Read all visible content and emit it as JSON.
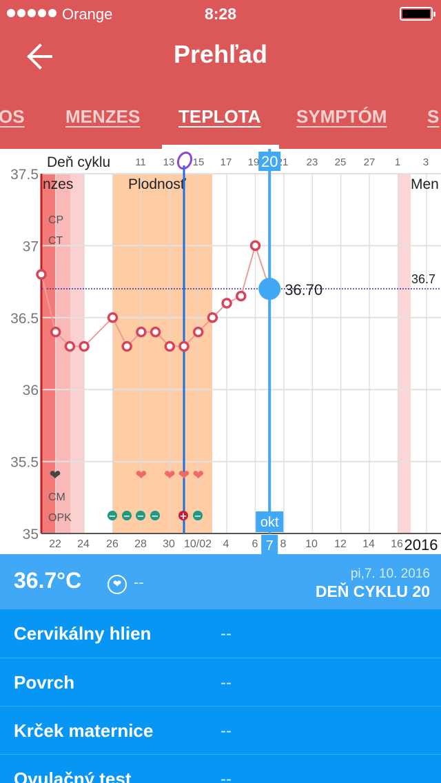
{
  "status_bar": {
    "carrier": "Orange",
    "time": "8:28"
  },
  "header": {
    "title": "Prehľad",
    "back_icon": "arrow-left-icon"
  },
  "tabs": [
    {
      "label": "OS",
      "active": false
    },
    {
      "label": "MENZES",
      "active": false
    },
    {
      "label": "TEPLOTA",
      "active": true
    },
    {
      "label": "SYMPTÓM",
      "active": false
    },
    {
      "label": "S",
      "active": false
    }
  ],
  "chart_data": {
    "type": "line",
    "top_axis_label": "Deň cyklu",
    "top_ticks": [
      "11",
      "13",
      "15",
      "17",
      "19",
      "21",
      "23",
      "25",
      "27",
      "1",
      "3"
    ],
    "selected_cycle_day": "20",
    "x_ticks": [
      "22",
      "24",
      "26",
      "28",
      "30",
      "10/02",
      "4",
      "6",
      "8",
      "10",
      "12",
      "14",
      "16"
    ],
    "selected_day": "7",
    "month_label": "okt",
    "year_label": "2016",
    "y_ticks": [
      "37.5",
      "37",
      "36.5",
      "36",
      "35.5",
      "35"
    ],
    "ylim": [
      35,
      37.5
    ],
    "series": [
      {
        "values": [
          36.8,
          36.4,
          36.3,
          36.3,
          null,
          36.5,
          36.3,
          36.4,
          36.4,
          36.3,
          36.3,
          36.4,
          36.5,
          36.6,
          36.65,
          37.0
        ]
      }
    ],
    "selected_value": 36.7,
    "selected_value_label": "36.70",
    "coverline_label": "36.7",
    "period_labels": {
      "menses_left": "nzes",
      "fertile": "Plodnosť",
      "menses_right": "Men"
    },
    "row_labels": {
      "cp": "CP",
      "ct": "CT",
      "cm": "CM",
      "opk": "OPK"
    },
    "heart_day_index": [
      1,
      7,
      9,
      10,
      11
    ],
    "opk_symbols": [
      "−",
      "−",
      "−",
      "−",
      "+",
      "−"
    ],
    "colors": {
      "menses": "#f47a7a",
      "fertile": "#ffcca4",
      "line": "#ef9a9a",
      "marker": "#d6455a",
      "selection": "#40a8f4",
      "ovulation_line": "#1e6ee4",
      "ovulation_marker": "#8a4ad6",
      "opk_negative": "#1e9a82",
      "opk_positive": "#c41e3a"
    }
  },
  "info": {
    "temperature": "36.7°C",
    "note_value": "--",
    "date": "pi,7. 10. 2016",
    "cycle_day": "DEŇ CYKLU 20"
  },
  "details": [
    {
      "label": "Cervikálny hlien",
      "value": "--"
    },
    {
      "label": "Povrch",
      "value": "--"
    },
    {
      "label": "Krček maternice",
      "value": "--"
    },
    {
      "label": "Ovulačný test",
      "value": "--"
    }
  ]
}
